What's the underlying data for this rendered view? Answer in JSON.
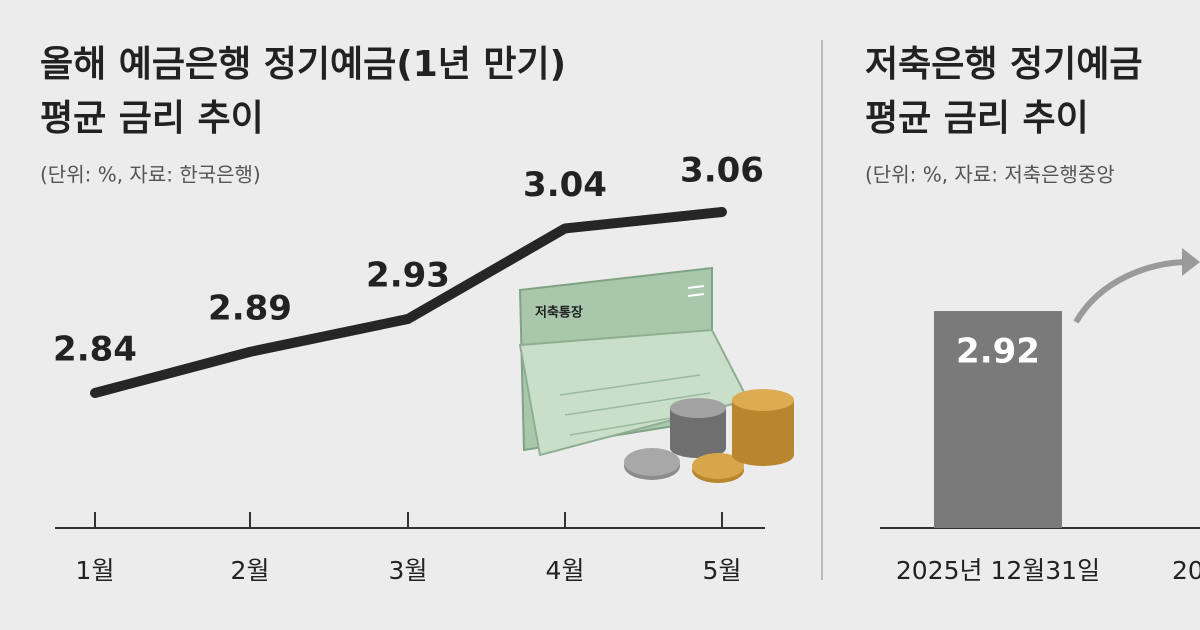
{
  "chart_data": [
    {
      "type": "line",
      "title": [
        "올해 예금은행 정기예금(1년 만기)",
        "평균 금리 추이"
      ],
      "subtitle": "(단위: %, 자료: 한국은행)",
      "categories": [
        "1월",
        "2월",
        "3월",
        "4월",
        "5월"
      ],
      "values": [
        2.84,
        2.89,
        2.93,
        3.04,
        3.06
      ],
      "color": "#262626"
    },
    {
      "type": "bar",
      "title": [
        "저축은행 정기예금",
        "평균 금리 추이"
      ],
      "subtitle": "(단위: %, 자료: 저축은행중앙",
      "categories": [
        "2025년 12월31일",
        "20"
      ],
      "values": [
        2.92,
        null
      ],
      "color": "#7a7a7a"
    }
  ],
  "illustration": {
    "label": "저축통장"
  }
}
